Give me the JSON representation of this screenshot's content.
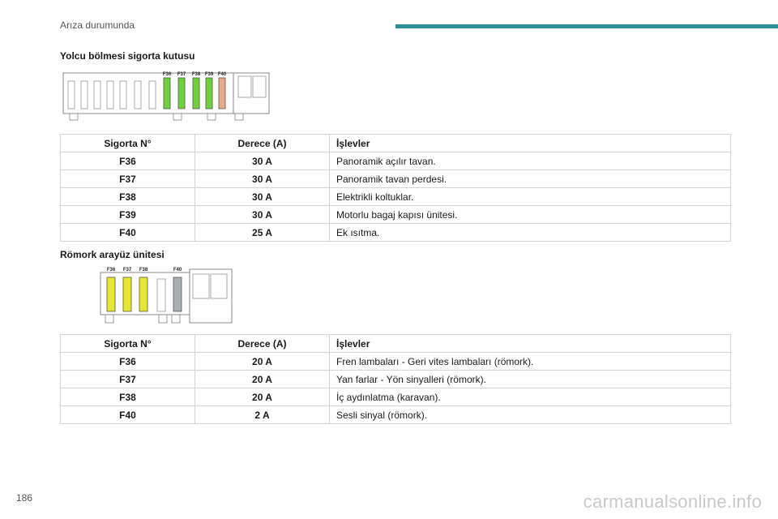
{
  "header": {
    "title": "Arıza durumunda",
    "accent_color": "#2a8f96"
  },
  "section1": {
    "heading": "Yolcu bölmesi sigorta kutusu",
    "diagram_labels": [
      "F36",
      "F37",
      "F38",
      "F39",
      "F40"
    ],
    "diagram_colors": [
      "#6fd13a",
      "#6fd13a",
      "#6fd13a",
      "#6fd13a",
      "#e8a989"
    ],
    "table": {
      "headers": [
        "Sigorta N°",
        "Derece (A)",
        "İşlevler"
      ],
      "rows": [
        [
          "F36",
          "30 A",
          "Panoramik açılır tavan."
        ],
        [
          "F37",
          "30 A",
          "Panoramik tavan perdesi."
        ],
        [
          "F38",
          "30 A",
          "Elektrikli koltuklar."
        ],
        [
          "F39",
          "30 A",
          "Motorlu bagaj kapısı ünitesi."
        ],
        [
          "F40",
          "25 A",
          "Ek ısıtma."
        ]
      ]
    }
  },
  "section2": {
    "heading": "Römork arayüz ünitesi",
    "diagram_labels": [
      "F36",
      "F37",
      "F38",
      "F40"
    ],
    "diagram_colors": [
      "#e6e633",
      "#e6e633",
      "#e6e633",
      "#a8b0b0"
    ],
    "table": {
      "headers": [
        "Sigorta N°",
        "Derece (A)",
        "İşlevler"
      ],
      "rows": [
        [
          "F36",
          "20 A",
          "Fren lambaları - Geri vites lambaları (römork)."
        ],
        [
          "F37",
          "20 A",
          "Yan farlar - Yön sinyalleri (römork)."
        ],
        [
          "F38",
          "20 A",
          "İç aydınlatma (karavan)."
        ],
        [
          "F40",
          "2 A",
          "Sesli sinyal (römork)."
        ]
      ]
    }
  },
  "footer": {
    "page_number": "186",
    "watermark": "carmanualsonline.info"
  }
}
